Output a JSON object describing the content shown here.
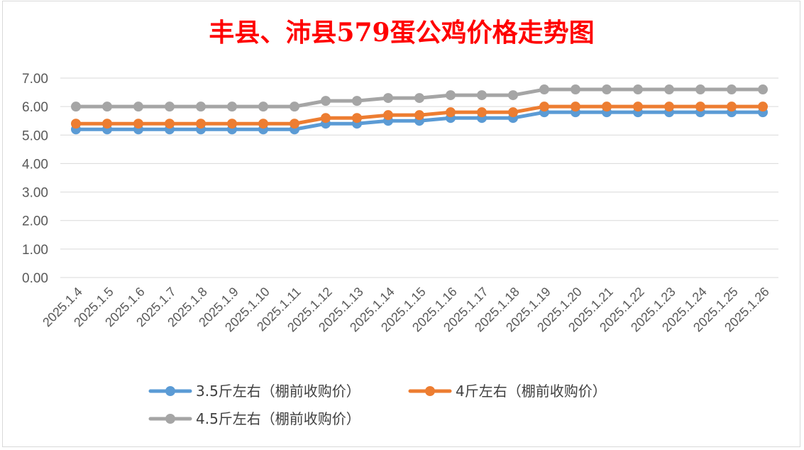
{
  "chart_data": {
    "type": "line",
    "title": "丰县、沛县579蛋公鸡价格走势图",
    "title_color": "#ff0000",
    "categories": [
      "2025.1.4",
      "2025.1.5",
      "2025.1.6",
      "2025.1.7",
      "2025.1.8",
      "2025.1.9",
      "2025.1.10",
      "2025.1.11",
      "2025.1.12",
      "2025.1.13",
      "2025.1.14",
      "2025.1.15",
      "2025.1.16",
      "2025.1.17",
      "2025.1.18",
      "2025.1.19",
      "2025.1.20",
      "2025.1.21",
      "2025.1.22",
      "2025.1.23",
      "2025.1.24",
      "2025.1.25",
      "2025.1.26"
    ],
    "yticks": [
      "0.00",
      "1.00",
      "2.00",
      "3.00",
      "4.00",
      "5.00",
      "6.00",
      "7.00"
    ],
    "ylim": [
      0,
      7
    ],
    "grid": true,
    "legend_position": "bottom",
    "series": [
      {
        "name": "3.5斤左右（棚前收购价）",
        "color": "#5b9bd5",
        "values": [
          5.2,
          5.2,
          5.2,
          5.2,
          5.2,
          5.2,
          5.2,
          5.2,
          5.4,
          5.4,
          5.5,
          5.5,
          5.6,
          5.6,
          5.6,
          5.8,
          5.8,
          5.8,
          5.8,
          5.8,
          5.8,
          5.8,
          5.8
        ]
      },
      {
        "name": "4斤左右（棚前收购价）",
        "color": "#ed7d31",
        "values": [
          5.4,
          5.4,
          5.4,
          5.4,
          5.4,
          5.4,
          5.4,
          5.4,
          5.6,
          5.6,
          5.7,
          5.7,
          5.8,
          5.8,
          5.8,
          6.0,
          6.0,
          6.0,
          6.0,
          6.0,
          6.0,
          6.0,
          6.0
        ]
      },
      {
        "name": "4.5斤左右（棚前收购价）",
        "color": "#a5a5a5",
        "values": [
          6.0,
          6.0,
          6.0,
          6.0,
          6.0,
          6.0,
          6.0,
          6.0,
          6.2,
          6.2,
          6.3,
          6.3,
          6.4,
          6.4,
          6.4,
          6.6,
          6.6,
          6.6,
          6.6,
          6.6,
          6.6,
          6.6,
          6.6
        ]
      }
    ]
  }
}
